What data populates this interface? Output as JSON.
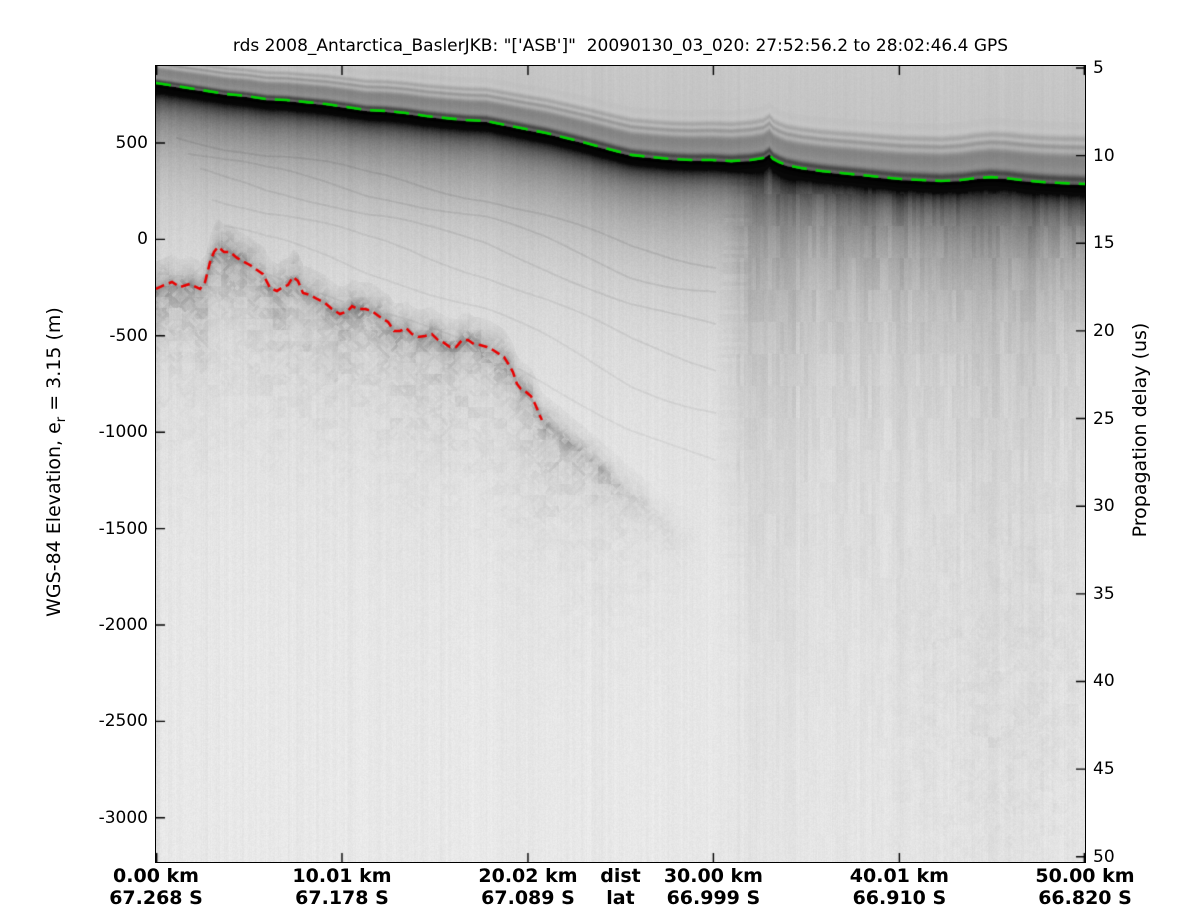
{
  "figure": {
    "title": "rds 2008_Antarctica_BaslerJKB: \"['ASB']\"  20090130_03_020: 27:52:56.2 to 28:02:46.4 GPS"
  },
  "axes": {
    "left": {
      "label_prefix": "WGS-84 Elevation, e",
      "label_sub": "r",
      "label_suffix": " = 3.15 (m)",
      "ticks": [
        500,
        0,
        -500,
        -1000,
        -1500,
        -2000,
        -2500,
        -3000
      ]
    },
    "right": {
      "label": "Propagation delay (us)",
      "ticks": [
        5,
        10,
        15,
        20,
        25,
        30,
        35,
        40,
        45,
        50
      ]
    },
    "bottom": {
      "dist_name": "dist",
      "lat_name": "lat",
      "dist_labels": [
        "0.00 km",
        "10.01 km",
        "20.02 km",
        "30.00 km",
        "40.01 km",
        "50.00 km"
      ],
      "lat_labels": [
        "67.268 S",
        "67.178 S",
        "67.089 S",
        "66.999 S",
        "66.910 S",
        "66.820 S"
      ]
    }
  },
  "colors": {
    "surface_pick": "#00d400",
    "bed_pick": "#e80000",
    "axis": "#000000",
    "figure_background": "#ffffff"
  },
  "chart_data": {
    "type": "heatmap",
    "title": "rds 2008_Antarctica_BaslerJKB: \"['ASB']\"  20090130_03_020: 27:52:56.2 to 28:02:46.4 GPS",
    "description": "Grayscale airborne radio-echo-sounding (radar depth sounder) echogram; dark = strong radar return. Green dashed line = picked ice surface, red dashed line = picked ice bottom (bed).",
    "x_axis": {
      "name": "dist",
      "units": "km",
      "range_km": [
        0,
        50
      ],
      "ticks_km": [
        0.0,
        10.01,
        20.02,
        30.0,
        40.01,
        50.0
      ],
      "lat_row_name": "lat",
      "ticks_lat": [
        "67.268 S",
        "67.178 S",
        "67.089 S",
        "66.999 S",
        "66.910 S",
        "66.820 S"
      ]
    },
    "y_axis_left": {
      "label": "WGS-84 Elevation, e_r = 3.15 (m)",
      "units": "m",
      "ticks": [
        500,
        0,
        -500,
        -1000,
        -1500,
        -2000,
        -2500,
        -3000
      ],
      "range": [
        905,
        -3220
      ]
    },
    "y_axis_right": {
      "label": "Propagation delay (us)",
      "units": "us",
      "ticks": [
        5,
        10,
        15,
        20,
        25,
        30,
        35,
        40,
        45,
        50
      ]
    },
    "grid": false,
    "legend": false,
    "surface_pick": {
      "color": "#00d400",
      "style": "dashed",
      "points_km_elev_m": [
        [
          0,
          806
        ],
        [
          1.08,
          790
        ],
        [
          2.42,
          770
        ],
        [
          3.77,
          749
        ],
        [
          4.84,
          739
        ],
        [
          5.92,
          723
        ],
        [
          7.0,
          718
        ],
        [
          8.07,
          707
        ],
        [
          9.15,
          697
        ],
        [
          10.23,
          682
        ],
        [
          11.3,
          666
        ],
        [
          12.38,
          661
        ],
        [
          13.46,
          650
        ],
        [
          14.53,
          635
        ],
        [
          15.61,
          624
        ],
        [
          16.69,
          614
        ],
        [
          17.76,
          609
        ],
        [
          18.84,
          588
        ],
        [
          19.91,
          567
        ],
        [
          20.99,
          547
        ],
        [
          22.07,
          521
        ],
        [
          23.14,
          495
        ],
        [
          23.95,
          474
        ],
        [
          24.76,
          453
        ],
        [
          25.57,
          433
        ],
        [
          26.64,
          422
        ],
        [
          27.72,
          412
        ],
        [
          28.79,
          407
        ],
        [
          29.87,
          407
        ],
        [
          30.95,
          401
        ],
        [
          32.02,
          407
        ],
        [
          32.67,
          417
        ],
        [
          32.99,
          438
        ],
        [
          33.21,
          412
        ],
        [
          33.53,
          396
        ],
        [
          33.91,
          381
        ],
        [
          34.71,
          365
        ],
        [
          35.79,
          350
        ],
        [
          36.87,
          339
        ],
        [
          37.94,
          329
        ],
        [
          39.02,
          318
        ],
        [
          40.1,
          308
        ],
        [
          41.17,
          303
        ],
        [
          42.25,
          298
        ],
        [
          43.33,
          303
        ],
        [
          44.13,
          313
        ],
        [
          44.94,
          318
        ],
        [
          45.75,
          313
        ],
        [
          46.56,
          303
        ],
        [
          47.63,
          293
        ],
        [
          48.71,
          287
        ],
        [
          50,
          282
        ]
      ]
    },
    "bed_pick": {
      "color": "#e80000",
      "style": "dashed",
      "points_km_elev_m": [
        [
          0,
          -257
        ],
        [
          0.43,
          -237
        ],
        [
          0.86,
          -221
        ],
        [
          1.29,
          -247
        ],
        [
          1.83,
          -231
        ],
        [
          2.37,
          -257
        ],
        [
          2.64,
          -221
        ],
        [
          2.91,
          -117
        ],
        [
          3.12,
          -65
        ],
        [
          3.34,
          -39
        ],
        [
          3.66,
          -65
        ],
        [
          3.98,
          -65
        ],
        [
          4.36,
          -96
        ],
        [
          4.74,
          -117
        ],
        [
          5.06,
          -133
        ],
        [
          5.44,
          -159
        ],
        [
          5.76,
          -180
        ],
        [
          6.14,
          -252
        ],
        [
          6.51,
          -268
        ],
        [
          6.83,
          -247
        ],
        [
          7.1,
          -237
        ],
        [
          7.37,
          -195
        ],
        [
          7.64,
          -216
        ],
        [
          7.91,
          -278
        ],
        [
          8.29,
          -288
        ],
        [
          8.67,
          -309
        ],
        [
          9.1,
          -330
        ],
        [
          9.47,
          -361
        ],
        [
          9.9,
          -387
        ],
        [
          10.33,
          -371
        ],
        [
          10.55,
          -346
        ],
        [
          10.87,
          -361
        ],
        [
          11.25,
          -361
        ],
        [
          11.62,
          -371
        ],
        [
          12.05,
          -402
        ],
        [
          12.49,
          -428
        ],
        [
          12.81,
          -475
        ],
        [
          13.13,
          -475
        ],
        [
          13.46,
          -460
        ],
        [
          13.78,
          -491
        ],
        [
          14.1,
          -506
        ],
        [
          14.48,
          -501
        ],
        [
          14.85,
          -491
        ],
        [
          15.18,
          -522
        ],
        [
          15.5,
          -537
        ],
        [
          15.82,
          -558
        ],
        [
          16.15,
          -558
        ],
        [
          16.47,
          -522
        ],
        [
          16.79,
          -522
        ],
        [
          17.11,
          -543
        ],
        [
          17.44,
          -548
        ],
        [
          17.81,
          -558
        ],
        [
          18.14,
          -574
        ],
        [
          18.46,
          -594
        ],
        [
          18.73,
          -610
        ],
        [
          19.0,
          -651
        ],
        [
          19.21,
          -688
        ],
        [
          19.43,
          -750
        ],
        [
          19.64,
          -776
        ],
        [
          19.91,
          -791
        ],
        [
          20.18,
          -812
        ],
        [
          20.4,
          -854
        ],
        [
          20.56,
          -890
        ],
        [
          20.67,
          -916
        ],
        [
          20.77,
          -937
        ]
      ]
    },
    "bed_texture_extension_km_elev_m": [
      [
        20.77,
        -937
      ],
      [
        23.14,
        -1123
      ],
      [
        25.3,
        -1305
      ],
      [
        27.99,
        -1528
      ]
    ]
  }
}
